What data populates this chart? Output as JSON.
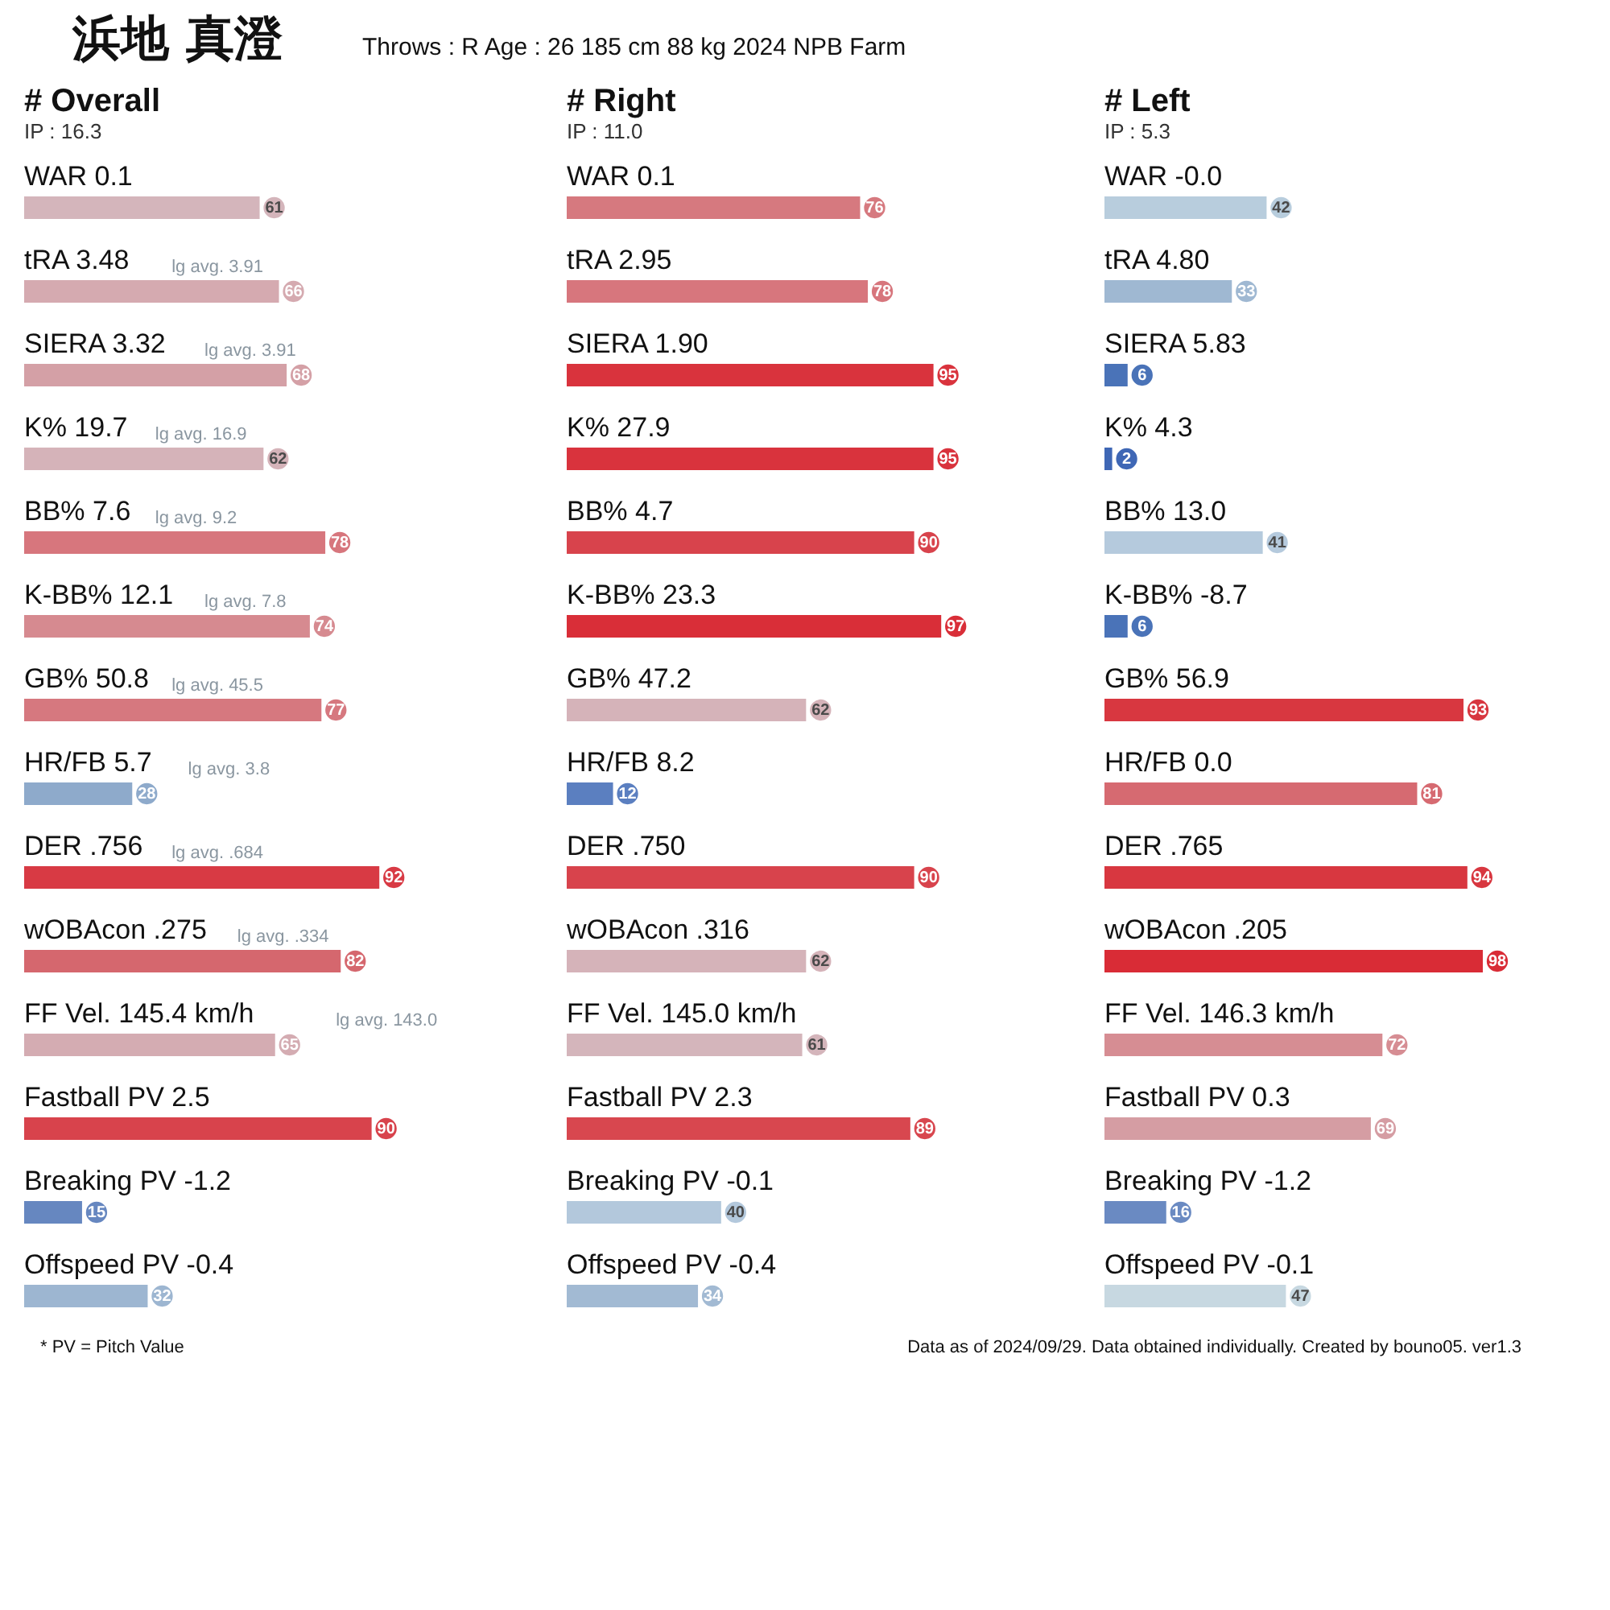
{
  "chart_data": [
    {
      "type": "other",
      "title": "浜地 真澄",
      "subtitle": "Throws : R  Age : 26  185 cm 88 kg   2024 NPB Farm",
      "annotations": [
        "* PV = Pitch Value",
        "Data as of 2024/09/29. Data obtained individually. Created by bouno05.  ver1.3"
      ]
    },
    {
      "type": "bar",
      "orientation": "horizontal",
      "title": "# Overall",
      "subtitle": "IP : 16.3",
      "data_labels": true,
      "categories": [
        "WAR 0.1",
        "tRA 3.48",
        "SIERA 3.32",
        "K% 19.7",
        "BB% 7.6",
        "K-BB% 12.1",
        "GB% 50.8",
        "HR/FB 5.7",
        "DER .756",
        "wOBAcon .275",
        "FF Vel. 145.4 km/h",
        "Fastball PV 2.5",
        "Breaking PV -1.2",
        "Offspeed PV -0.4"
      ],
      "values": [
        61,
        66,
        68,
        62,
        78,
        74,
        77,
        28,
        92,
        82,
        65,
        90,
        15,
        32
      ],
      "colors": [
        "#d4b5bb",
        "#d5aab0",
        "#d4a0a6",
        "#d5b3b9",
        "#d7767d",
        "#d68a90",
        "#d6787f",
        "#8eaacb",
        "#d83a44",
        "#d5676e",
        "#d4acb2",
        "#d8434c",
        "#6687c0",
        "#9db6d1"
      ],
      "annotations": [
        null,
        "lg avg. 3.91",
        "lg avg. 3.91",
        "lg avg. 16.9",
        "lg avg. 9.2",
        "lg avg. 7.8",
        "lg avg. 45.5",
        "lg avg. 3.8",
        "lg avg. .684",
        "lg avg. .334",
        "lg avg. 143.0",
        null,
        null,
        null
      ]
    },
    {
      "type": "bar",
      "orientation": "horizontal",
      "title": "# Right",
      "subtitle": "IP : 11.0",
      "data_labels": true,
      "categories": [
        "WAR 0.1",
        "tRA 2.95",
        "SIERA 1.90",
        "K% 27.9",
        "BB% 4.7",
        "K-BB% 23.3",
        "GB% 47.2",
        "HR/FB 8.2",
        "DER .750",
        "wOBAcon .316",
        "FF Vel. 145.0 km/h",
        "Fastball PV 2.3",
        "Breaking PV -0.1",
        "Offspeed PV -0.4"
      ],
      "values": [
        76,
        78,
        95,
        95,
        90,
        97,
        62,
        12,
        90,
        62,
        61,
        89,
        40,
        34
      ],
      "colors": [
        "#d6797f",
        "#d7767d",
        "#d9333d",
        "#d9333d",
        "#d8434c",
        "#d92e38",
        "#d5b3b9",
        "#5b7fc0",
        "#d8434c",
        "#d5b3b9",
        "#d4b5bb",
        "#d8474f",
        "#b3c8dc",
        "#a2bad3"
      ]
    },
    {
      "type": "bar",
      "orientation": "horizontal",
      "title": "# Left",
      "subtitle": "IP : 5.3",
      "data_labels": true,
      "categories": [
        "WAR -0.0",
        "tRA 4.80",
        "SIERA 5.83",
        "K% 4.3",
        "BB% 13.0",
        "K-BB% -8.7",
        "GB% 56.9",
        "HR/FB 0.0",
        "DER .765",
        "wOBAcon .205",
        "FF Vel. 146.3 km/h",
        "Fastball PV 0.3",
        "Breaking PV -1.2",
        "Offspeed PV -0.1"
      ],
      "values": [
        42,
        33,
        6,
        2,
        41,
        6,
        93,
        81,
        94,
        98,
        72,
        69,
        16,
        47
      ],
      "colors": [
        "#b8cddd",
        "#9fb8d2",
        "#4a73b8",
        "#3f67b5",
        "#b5cadd",
        "#4a73b8",
        "#d83740",
        "#d66a71",
        "#d83740",
        "#d92c36",
        "#d68d93",
        "#d59da3",
        "#6a8ac2",
        "#c7d8e1"
      ]
    }
  ]
}
